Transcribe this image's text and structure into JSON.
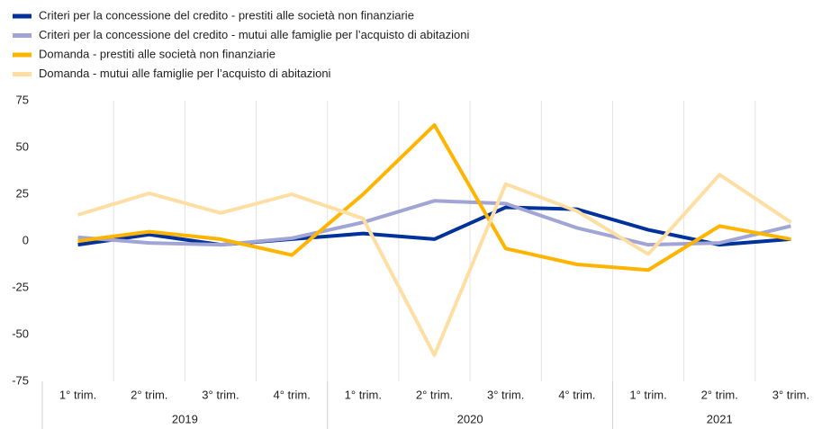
{
  "chart_data": {
    "type": "line",
    "categories": [
      "1° trim.",
      "2° trim.",
      "3° trim.",
      "4° trim.",
      "1° trim.",
      "2° trim.",
      "3° trim.",
      "4° trim.",
      "1° trim.",
      "2° trim.",
      "3° trim."
    ],
    "x_groups": [
      {
        "label": "2019",
        "span": 4
      },
      {
        "label": "2020",
        "span": 4
      },
      {
        "label": "2021",
        "span": 3
      }
    ],
    "series": [
      {
        "name": "Criteri per la concessione del credito - prestiti alle società non finanziarie",
        "color": "#003299",
        "values": [
          -2,
          3.5,
          -2,
          1,
          4,
          1,
          18,
          17,
          6,
          -2,
          1
        ]
      },
      {
        "name": "Criteri per la concessione del credito - mutui alle famiglie per l’acquisto di abitazioni",
        "color": "#a0a5d6",
        "values": [
          2,
          -1,
          -2,
          1.5,
          10,
          21.5,
          20,
          7,
          -2,
          -1,
          8
        ]
      },
      {
        "name": "Domanda - prestiti alle società non finanziarie",
        "color": "#ffb400",
        "values": [
          0,
          5,
          1,
          -7.5,
          25,
          62,
          -4,
          -12.5,
          -15.5,
          8,
          1
        ]
      },
      {
        "name": "Domanda - mutui alle famiglie per l’acquisto di abitazioni",
        "color": "#ffdea4",
        "values": [
          14,
          25.5,
          15,
          25,
          12,
          -61,
          30.5,
          16,
          -7,
          35.5,
          10
        ]
      }
    ],
    "ylim": [
      -75,
      75
    ],
    "yticks": [
      -75,
      -50,
      -25,
      0,
      25,
      50,
      75
    ],
    "grid": false,
    "legend": "top-left"
  }
}
